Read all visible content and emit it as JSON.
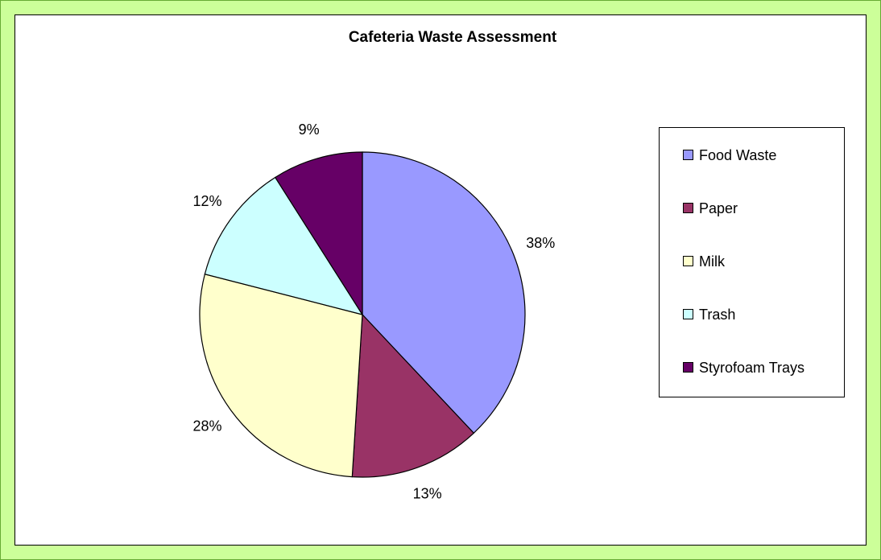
{
  "chart_data": {
    "type": "pie",
    "title": "Cafeteria Waste Assessment",
    "categories": [
      "Food Waste",
      "Paper",
      "Milk",
      "Trash",
      "Styrofoam Trays"
    ],
    "values": [
      38,
      13,
      28,
      12,
      9
    ],
    "value_labels": [
      "38%",
      "13%",
      "28%",
      "12%",
      "9%"
    ],
    "colors": [
      "#9999ff",
      "#993366",
      "#ffffcc",
      "#ccffff",
      "#660066"
    ],
    "legend": "right"
  }
}
